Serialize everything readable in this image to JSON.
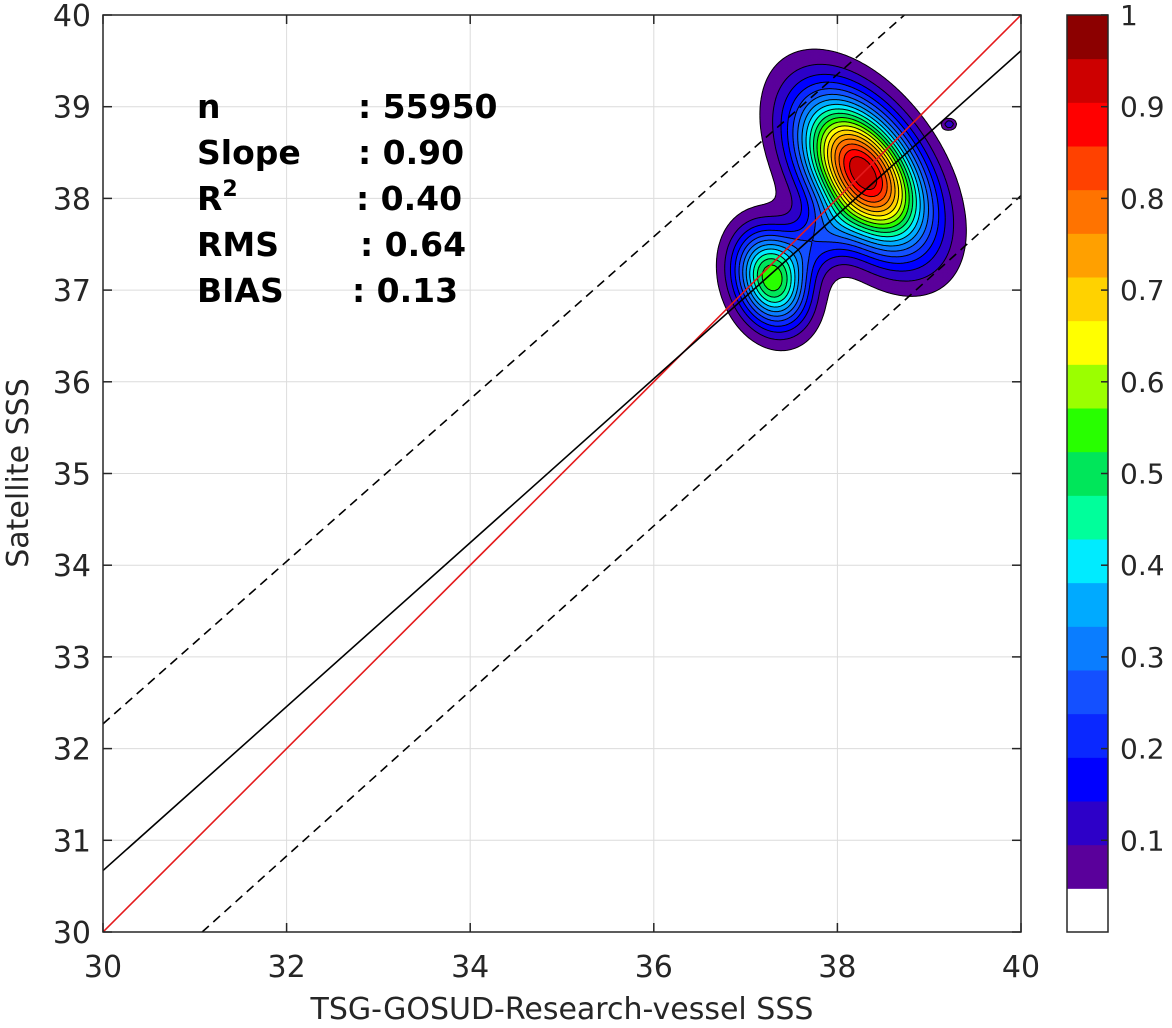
{
  "chart_data": {
    "type": "contour",
    "xlabel": "TSG-GOSUD-Research-vessel SSS",
    "ylabel": "Satellite SSS",
    "xlim": [
      30,
      40
    ],
    "ylim": [
      30,
      40
    ],
    "x_ticks": [
      "30",
      "32",
      "34",
      "36",
      "38",
      "40"
    ],
    "y_ticks": [
      "30",
      "31",
      "32",
      "33",
      "34",
      "35",
      "36",
      "37",
      "38",
      "39",
      "40"
    ],
    "grid": true,
    "stats": [
      {
        "label": "n",
        "sep": ":",
        "value": "55950"
      },
      {
        "label": "Slope",
        "sep": ":",
        "value": "0.90"
      },
      {
        "label": "R",
        "sup": "2",
        "sep": ":",
        "value": "0.40"
      },
      {
        "label": "RMS",
        "sep": ":",
        "value": "0.64"
      },
      {
        "label": "BIAS",
        "sep": ":",
        "value": "0.13"
      }
    ],
    "lines": [
      {
        "name": "1:1",
        "style": "solid",
        "color": "#e41a1c",
        "points": [
          [
            30,
            30
          ],
          [
            40,
            40
          ]
        ]
      },
      {
        "name": "regression",
        "style": "solid",
        "color": "#000000",
        "points": [
          [
            30,
            30.67
          ],
          [
            40,
            39.61
          ]
        ]
      },
      {
        "name": "upper bound",
        "style": "dashed",
        "color": "#000000",
        "points": [
          [
            30,
            32.27
          ],
          [
            38.73,
            40
          ]
        ]
      },
      {
        "name": "lower bound",
        "style": "dashed",
        "color": "#000000",
        "points": [
          [
            31.08,
            30
          ],
          [
            40,
            38.03
          ]
        ]
      }
    ],
    "density": {
      "peaks": [
        {
          "x": 38.28,
          "y": 38.28,
          "sx": 0.36,
          "sy": 0.62,
          "amp": 1.0,
          "rot": 0.6
        },
        {
          "x": 37.28,
          "y": 37.12,
          "sx": 0.26,
          "sy": 0.36,
          "amp": 0.58,
          "rot": 0.3
        },
        {
          "x": 37.78,
          "y": 37.55,
          "sx": 0.3,
          "sy": 0.22,
          "amp": 0.16,
          "rot": 0.7
        },
        {
          "x": 39.22,
          "y": 38.81,
          "sx": 0.05,
          "sy": 0.04,
          "amp": 0.14,
          "rot": 0.0
        }
      ],
      "levels": [
        0.05,
        0.1,
        0.15,
        0.2,
        0.25,
        0.3,
        0.35,
        0.4,
        0.45,
        0.5,
        0.55,
        0.6,
        0.65,
        0.7,
        0.75,
        0.8,
        0.85,
        0.9,
        0.95
      ]
    },
    "colorbar": {
      "range": [
        0,
        1
      ],
      "ticks": [
        "0.1",
        "0.2",
        "0.3",
        "0.4",
        "0.5",
        "0.6",
        "0.7",
        "0.8",
        "0.9",
        "1"
      ],
      "colors": [
        "#ffffff",
        "#5a009b",
        "#2d00c8",
        "#0000ff",
        "#0a28ff",
        "#1450ff",
        "#0a7dff",
        "#00aaff",
        "#00ebff",
        "#00ff9b",
        "#00e65a",
        "#28ff00",
        "#9bff00",
        "#ffff00",
        "#ffd200",
        "#ffa000",
        "#ff7300",
        "#ff4100",
        "#ff0000",
        "#cd0000",
        "#8c0000"
      ]
    }
  }
}
